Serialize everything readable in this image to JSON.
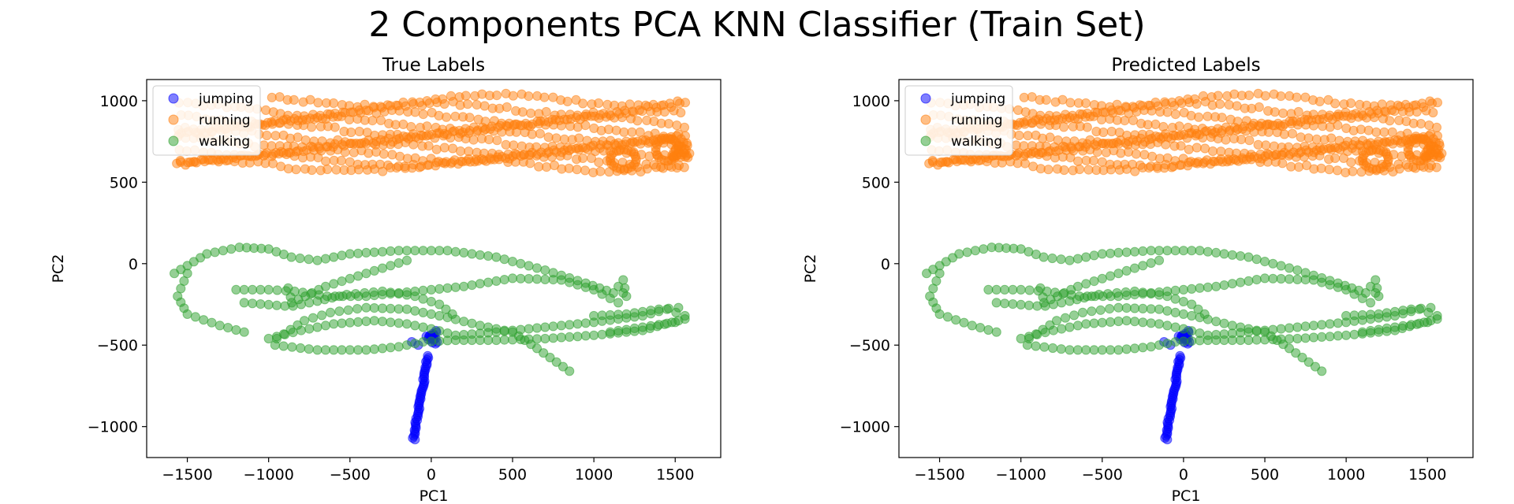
{
  "figure": {
    "title": "2 Components PCA KNN Classifier (Train Set)"
  },
  "colors": {
    "jumping": "#0000ff",
    "running": "#ff7f0e",
    "walking": "#2ca02c",
    "axis": "#000000"
  },
  "chart_data": [
    {
      "type": "scatter",
      "title": "True Labels",
      "xlabel": "PC1",
      "ylabel": "PC2",
      "xlim": [
        -1750,
        1780
      ],
      "ylim": [
        -1190,
        1130
      ],
      "xticks": [
        -1500,
        -1000,
        -500,
        0,
        500,
        1000,
        1500
      ],
      "yticks": [
        -1000,
        -500,
        0,
        500,
        1000
      ],
      "xtick_labels": [
        "−1500",
        "−1000",
        "−500",
        "0",
        "500",
        "1000",
        "1500"
      ],
      "ytick_labels": [
        "−1000",
        "−500",
        "0",
        "500",
        "1000"
      ],
      "legend": {
        "placement": "upper-left",
        "entries": [
          "jumping",
          "running",
          "walking"
        ]
      },
      "series": [
        {
          "name": "jumping",
          "color": "#0000ff",
          "points": []
        },
        {
          "name": "running",
          "color": "#ff7f0e",
          "points": []
        },
        {
          "name": "walking",
          "color": "#2ca02c",
          "points": []
        }
      ]
    },
    {
      "type": "scatter",
      "title": "Predicted Labels",
      "xlabel": "PC1",
      "ylabel": "PC2",
      "xlim": [
        -1750,
        1780
      ],
      "ylim": [
        -1190,
        1130
      ],
      "xticks": [
        -1500,
        -1000,
        -500,
        0,
        500,
        1000,
        1500
      ],
      "yticks": [
        -1000,
        -500,
        0,
        500,
        1000
      ],
      "xtick_labels": [
        "−1500",
        "−1000",
        "−500",
        "0",
        "500",
        "1000",
        "1500"
      ],
      "ytick_labels": [
        "−1000",
        "−500",
        "0",
        "500",
        "1000"
      ],
      "legend": {
        "placement": "upper-left",
        "entries": [
          "jumping",
          "running",
          "walking"
        ]
      },
      "series": [
        {
          "name": "jumping",
          "color": "#0000ff",
          "points": []
        },
        {
          "name": "running",
          "color": "#ff7f0e",
          "points": []
        },
        {
          "name": "walking",
          "color": "#2ca02c",
          "points": []
        }
      ]
    }
  ]
}
